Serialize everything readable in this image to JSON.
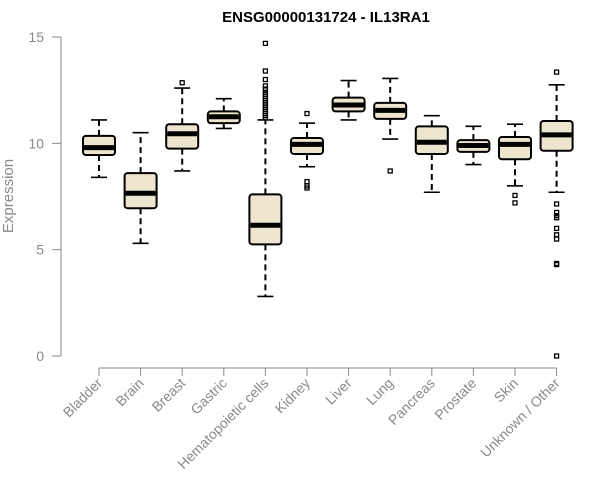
{
  "chart_data": {
    "type": "boxplot",
    "title": "ENSG00000131724 - IL13RA1",
    "xlabel": "",
    "ylabel": "Expression",
    "ylim": [
      0,
      15
    ],
    "yticks": [
      0,
      5,
      10,
      15
    ],
    "box_color": "#ede5ce",
    "categories": [
      "Bladder",
      "Brain",
      "Breast",
      "Gastric",
      "Hematopoietic cells",
      "Kidney",
      "Liver",
      "Lung",
      "Pancreas",
      "Prostate",
      "Skin",
      "Unknown / Other"
    ],
    "series": [
      {
        "name": "Bladder",
        "min": 8.4,
        "q1": 9.45,
        "median": 9.8,
        "q3": 10.35,
        "max": 11.1,
        "outliers": []
      },
      {
        "name": "Brain",
        "min": 5.3,
        "q1": 6.95,
        "median": 7.65,
        "q3": 8.6,
        "max": 10.5,
        "outliers": []
      },
      {
        "name": "Breast",
        "min": 8.7,
        "q1": 9.75,
        "median": 10.45,
        "q3": 10.9,
        "max": 12.6,
        "outliers": [
          12.85
        ]
      },
      {
        "name": "Gastric",
        "min": 10.7,
        "q1": 10.95,
        "median": 11.25,
        "q3": 11.5,
        "max": 12.1,
        "outliers": []
      },
      {
        "name": "Hematopoietic cells",
        "min": 2.8,
        "q1": 5.25,
        "median": 6.15,
        "q3": 7.6,
        "max": 11.1,
        "outliers": [
          14.7,
          13.4,
          13.0,
          12.7,
          12.55,
          12.4,
          12.3,
          12.2,
          12.1,
          12.0,
          11.9,
          11.8,
          11.7,
          11.6,
          11.5,
          11.4,
          11.3,
          11.2
        ]
      },
      {
        "name": "Kidney",
        "min": 8.9,
        "q1": 9.5,
        "median": 9.95,
        "q3": 10.25,
        "max": 10.95,
        "outliers": [
          11.4,
          8.2,
          8.0,
          7.9
        ]
      },
      {
        "name": "Liver",
        "min": 11.1,
        "q1": 11.5,
        "median": 11.8,
        "q3": 12.15,
        "max": 12.95,
        "outliers": []
      },
      {
        "name": "Lung",
        "min": 10.2,
        "q1": 11.15,
        "median": 11.55,
        "q3": 11.9,
        "max": 13.05,
        "outliers": [
          8.7
        ]
      },
      {
        "name": "Pancreas",
        "min": 7.7,
        "q1": 9.5,
        "median": 10.05,
        "q3": 10.8,
        "max": 11.3,
        "outliers": []
      },
      {
        "name": "Prostate",
        "min": 9.0,
        "q1": 9.6,
        "median": 9.9,
        "q3": 10.15,
        "max": 10.8,
        "outliers": []
      },
      {
        "name": "Skin",
        "min": 8.0,
        "q1": 9.25,
        "median": 9.95,
        "q3": 10.3,
        "max": 10.9,
        "outliers": [
          7.55,
          7.2
        ]
      },
      {
        "name": "Unknown / Other",
        "min": 7.7,
        "q1": 9.65,
        "median": 10.4,
        "q3": 11.05,
        "max": 12.75,
        "outliers": [
          13.35,
          7.15,
          6.75,
          6.6,
          6.5,
          6.0,
          5.7,
          5.5,
          4.35,
          4.3,
          0.0
        ]
      }
    ]
  }
}
